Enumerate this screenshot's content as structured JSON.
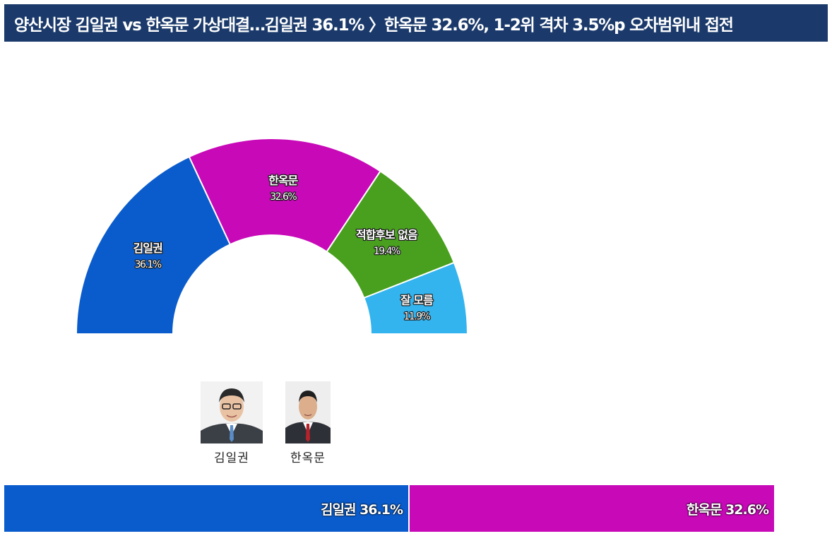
{
  "title": "양산시장 김일권 vs 한옥문 가상대결…김일권 36.1% 〉한옥문 32.6%, 1-2위 격차 3.5%p 오차범위내 접전",
  "chart_data": [
    {
      "type": "pie",
      "style": "half-donut",
      "categories": [
        "김일권",
        "한옥문",
        "적합후보 없음",
        "잘 모름"
      ],
      "values": [
        36.1,
        32.6,
        19.4,
        11.9
      ],
      "value_labels": [
        "36.1%",
        "32.6%",
        "19.4%",
        "11.9%"
      ],
      "colors": [
        "#0a5ccc",
        "#c809b8",
        "#48a01e",
        "#33b4ef"
      ]
    },
    {
      "type": "bar",
      "style": "stacked-horizontal",
      "categories": [
        "김일권",
        "한옥문"
      ],
      "values": [
        36.1,
        32.6
      ],
      "labels": [
        "김일권 36.1%",
        "한옥문 32.6%"
      ],
      "colors": [
        "#0a5ccc",
        "#c809b8"
      ]
    }
  ],
  "candidates": [
    {
      "name": "김일권",
      "photo": "candidate-kim-photo"
    },
    {
      "name": "한옥문",
      "photo": "candidate-han-photo"
    }
  ]
}
